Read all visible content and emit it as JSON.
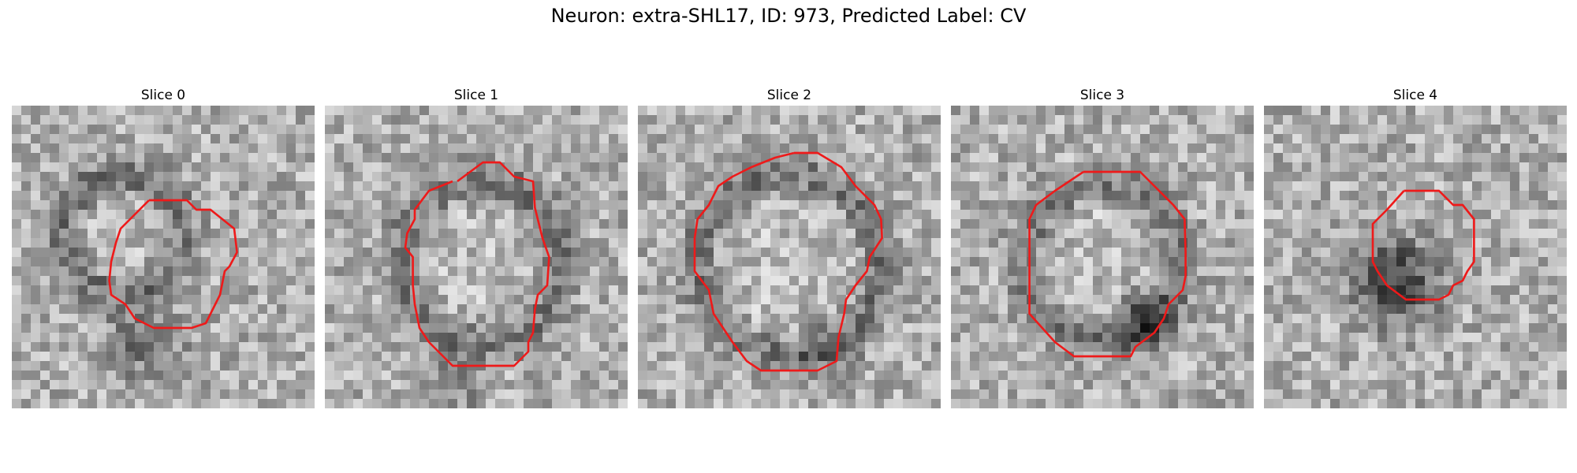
{
  "figure": {
    "title": "Neuron: extra-SHL17, ID: 973, Predicted Label: CV"
  },
  "colors": {
    "contour": "#ee1a1a"
  },
  "slices": [
    {
      "label": "Slice 0"
    },
    {
      "label": "Slice 1"
    },
    {
      "label": "Slice 2"
    },
    {
      "label": "Slice 3"
    },
    {
      "label": "Slice 4"
    }
  ]
}
